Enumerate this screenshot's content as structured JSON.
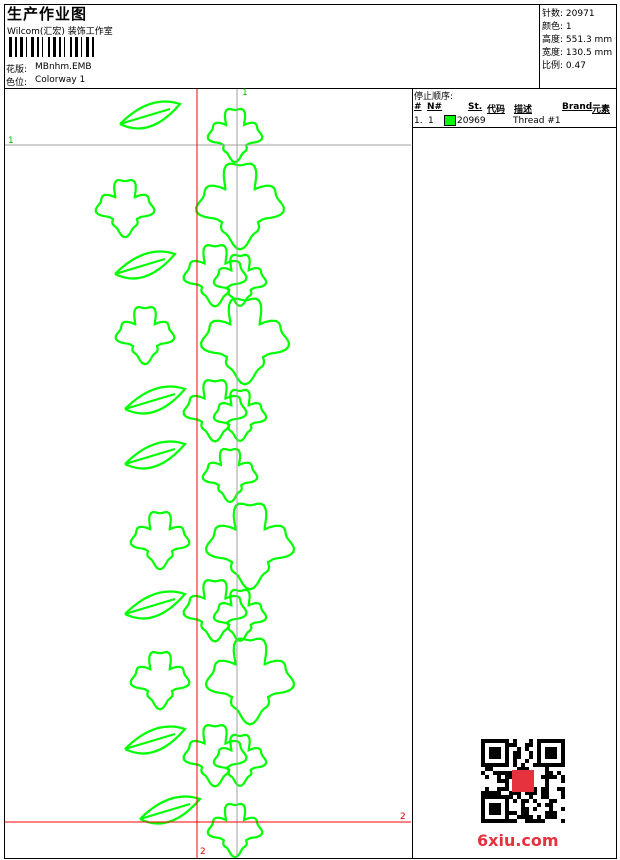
{
  "header": {
    "title": "生产作业图",
    "company": "Wilcom(汇宏) 装饰工作室",
    "design_label": "花版:",
    "design_value": "MBnhm.EMB",
    "colorway_label": "色位:",
    "colorway_value": "Colorway 1"
  },
  "stats": {
    "stitches_label": "针数:",
    "stitches": "20971",
    "colors_label": "颜色:",
    "colors": "1",
    "height_label": "高度:",
    "height": "551.3 mm",
    "width_label": "宽度:",
    "width": "130.5 mm",
    "scale_label": "比例:",
    "scale": "0.47"
  },
  "stop_sequence": {
    "title": "停止顺序:",
    "columns": [
      "#",
      "N#",
      "St.",
      "代码",
      "描述",
      "Brand",
      "元素"
    ],
    "rows": [
      {
        "index": "1.",
        "needle": "1",
        "color": "#00ff00",
        "code": "20969",
        "description": "Thread #1"
      }
    ]
  },
  "markers": {
    "top": "1",
    "left": "1",
    "right": "2",
    "bottom": "2"
  },
  "colors": {
    "thread": "#00ff00",
    "guide_red": "#ff0000",
    "guide_gray": "#a0a0a0"
  },
  "watermark": "6xiu.com"
}
